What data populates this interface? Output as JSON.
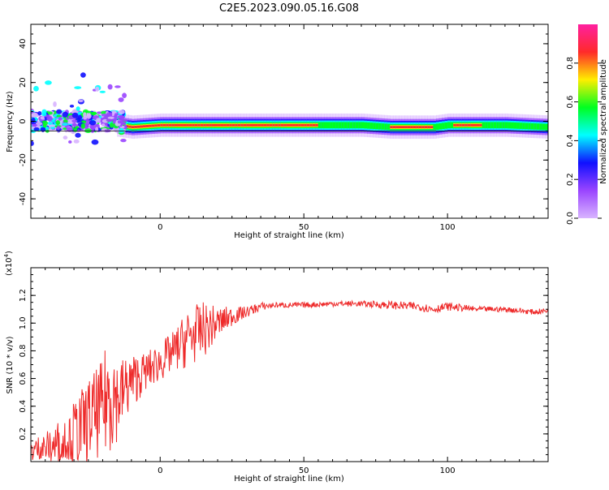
{
  "title": "C2E5.2023.090.05.16.G08",
  "chart_data": [
    {
      "type": "heatmap",
      "xlabel": "Height of straight line (km)",
      "ylabel": "Frequency (Hz)",
      "xlim": [
        -45,
        135
      ],
      "ylim": [
        -50,
        50
      ],
      "xticks": [
        0,
        50,
        100
      ],
      "yticks": [
        -40,
        -20,
        0,
        20,
        40
      ],
      "ytick_labels": [
        "-40",
        "-20",
        "0",
        "20",
        "40"
      ],
      "colorbar": {
        "label": "Normalized spectral amplitude",
        "range": [
          0.0,
          1.0
        ],
        "ticks": [
          0.0,
          0.2,
          0.4,
          0.6,
          0.8
        ],
        "tick_labels": [
          "0.0",
          "0.2",
          "0.4",
          "0.6",
          "0.8"
        ],
        "colormap": [
          "#d8b4ff",
          "#9a45ff",
          "#1010ff",
          "#00ffff",
          "#00ff20",
          "#ffee00",
          "#ff2a2a",
          "#ff20a0"
        ]
      },
      "ridge": {
        "description_points_x": [
          -45,
          -30,
          -15,
          -10,
          0,
          20,
          40,
          60,
          70,
          80,
          85,
          95,
          100,
          110,
          120,
          135
        ],
        "center_freq": [
          0,
          0,
          -2,
          -3,
          -2,
          -2,
          -2,
          -2,
          -2,
          -3,
          -3,
          -3,
          -2,
          -2,
          -2,
          -3
        ]
      }
    },
    {
      "type": "line",
      "xlabel": "Height of straight line (km)",
      "ylabel": "SNR (10 * v/v)",
      "scale_label": "(x10",
      "scale_exp": "4",
      "scale_close": ")",
      "xlim": [
        -45,
        135
      ],
      "ylim": [
        0.0,
        1.4
      ],
      "xticks": [
        0,
        50,
        100
      ],
      "yticks": [
        0.2,
        0.4,
        0.6,
        0.8,
        1.0,
        1.2
      ],
      "ytick_labels": [
        "0.2",
        "0.4",
        "0.6",
        "0.8",
        "1.0",
        "1.2"
      ],
      "color": "#ee2a2a",
      "envelope": {
        "x": [
          -45,
          -40,
          -35,
          -30,
          -25,
          -20,
          -17,
          -15,
          -10,
          -5,
          0,
          5,
          10,
          15,
          20,
          25,
          30,
          35,
          40,
          50,
          60,
          70,
          80,
          90,
          95,
          100,
          110,
          120,
          130,
          135
        ],
        "mean": [
          0.08,
          0.1,
          0.13,
          0.2,
          0.3,
          0.38,
          0.55,
          0.45,
          0.58,
          0.65,
          0.72,
          0.8,
          0.9,
          0.95,
          1.0,
          1.05,
          1.08,
          1.12,
          1.13,
          1.13,
          1.14,
          1.14,
          1.13,
          1.12,
          1.1,
          1.12,
          1.1,
          1.1,
          1.08,
          1.09
        ],
        "spread": [
          0.08,
          0.12,
          0.18,
          0.25,
          0.3,
          0.35,
          0.5,
          0.3,
          0.2,
          0.14,
          0.14,
          0.15,
          0.22,
          0.2,
          0.12,
          0.07,
          0.04,
          0.03,
          0.02,
          0.02,
          0.02,
          0.02,
          0.03,
          0.03,
          0.03,
          0.03,
          0.02,
          0.02,
          0.02,
          0.02
        ]
      }
    }
  ]
}
